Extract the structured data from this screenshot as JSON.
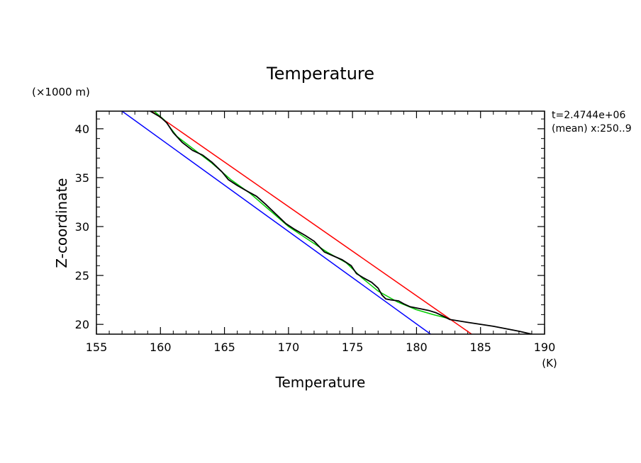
{
  "chart_data": {
    "type": "line",
    "title": "Temperature",
    "xlabel": "Temperature",
    "ylabel": "Z-coordinate",
    "x_unit": "(K)",
    "y_unit": "(×1000 m)",
    "xlim": [
      155,
      190
    ],
    "ylim": [
      19,
      41.8
    ],
    "x_ticks": [
      155,
      160,
      165,
      170,
      175,
      180,
      185,
      190
    ],
    "y_ticks": [
      20,
      25,
      30,
      35,
      40
    ],
    "x_minor_step": 1,
    "y_minor_step": 1,
    "annotations": [
      "t=2.4744e+06",
      "(mean) x:250..9"
    ],
    "series": [
      {
        "name": "blue reference",
        "color": "#0000ff",
        "points": [
          [
            157.0,
            41.8
          ],
          [
            181.1,
            19.0
          ]
        ]
      },
      {
        "name": "red reference",
        "color": "#ff0000",
        "points": [
          [
            159.3,
            41.8
          ],
          [
            184.3,
            19.0
          ]
        ]
      },
      {
        "name": "green smoothed profile",
        "color": "#00cc00",
        "points": [
          [
            159.5,
            41.8
          ],
          [
            160.3,
            40.9
          ],
          [
            161.3,
            39.2
          ],
          [
            162.8,
            37.7
          ],
          [
            164.0,
            36.5
          ],
          [
            165.5,
            34.8
          ],
          [
            167.0,
            33.4
          ],
          [
            168.5,
            31.7
          ],
          [
            170.0,
            30.0
          ],
          [
            171.5,
            28.7
          ],
          [
            173.0,
            27.4
          ],
          [
            174.5,
            26.3
          ],
          [
            175.7,
            24.8
          ],
          [
            177.0,
            23.4
          ],
          [
            178.5,
            22.3
          ],
          [
            180.0,
            21.5
          ],
          [
            181.3,
            21.0
          ],
          [
            182.5,
            20.6
          ]
        ]
      },
      {
        "name": "black profile",
        "color": "#000000",
        "points": [
          [
            159.2,
            41.8
          ],
          [
            160.0,
            41.2
          ],
          [
            160.5,
            40.6
          ],
          [
            161.0,
            39.6
          ],
          [
            161.7,
            38.6
          ],
          [
            162.5,
            37.8
          ],
          [
            163.3,
            37.3
          ],
          [
            164.0,
            36.6
          ],
          [
            164.8,
            35.6
          ],
          [
            165.3,
            34.8
          ],
          [
            166.0,
            34.2
          ],
          [
            166.8,
            33.6
          ],
          [
            167.5,
            33.1
          ],
          [
            168.2,
            32.3
          ],
          [
            169.0,
            31.3
          ],
          [
            169.8,
            30.3
          ],
          [
            170.5,
            29.7
          ],
          [
            171.3,
            29.1
          ],
          [
            172.0,
            28.5
          ],
          [
            172.8,
            27.4
          ],
          [
            173.5,
            27.0
          ],
          [
            174.2,
            26.6
          ],
          [
            174.9,
            26.0
          ],
          [
            175.3,
            25.2
          ],
          [
            175.8,
            24.8
          ],
          [
            176.5,
            24.3
          ],
          [
            177.0,
            23.7
          ],
          [
            177.3,
            23.0
          ],
          [
            177.6,
            22.6
          ],
          [
            178.0,
            22.5
          ],
          [
            178.6,
            22.4
          ],
          [
            179.0,
            22.1
          ],
          [
            179.5,
            21.8
          ],
          [
            180.3,
            21.6
          ],
          [
            181.0,
            21.4
          ],
          [
            181.5,
            21.2
          ],
          [
            182.0,
            20.9
          ],
          [
            182.6,
            20.5
          ],
          [
            184.0,
            20.2
          ],
          [
            186.0,
            19.8
          ],
          [
            188.0,
            19.3
          ],
          [
            189.0,
            19.0
          ]
        ]
      }
    ]
  }
}
